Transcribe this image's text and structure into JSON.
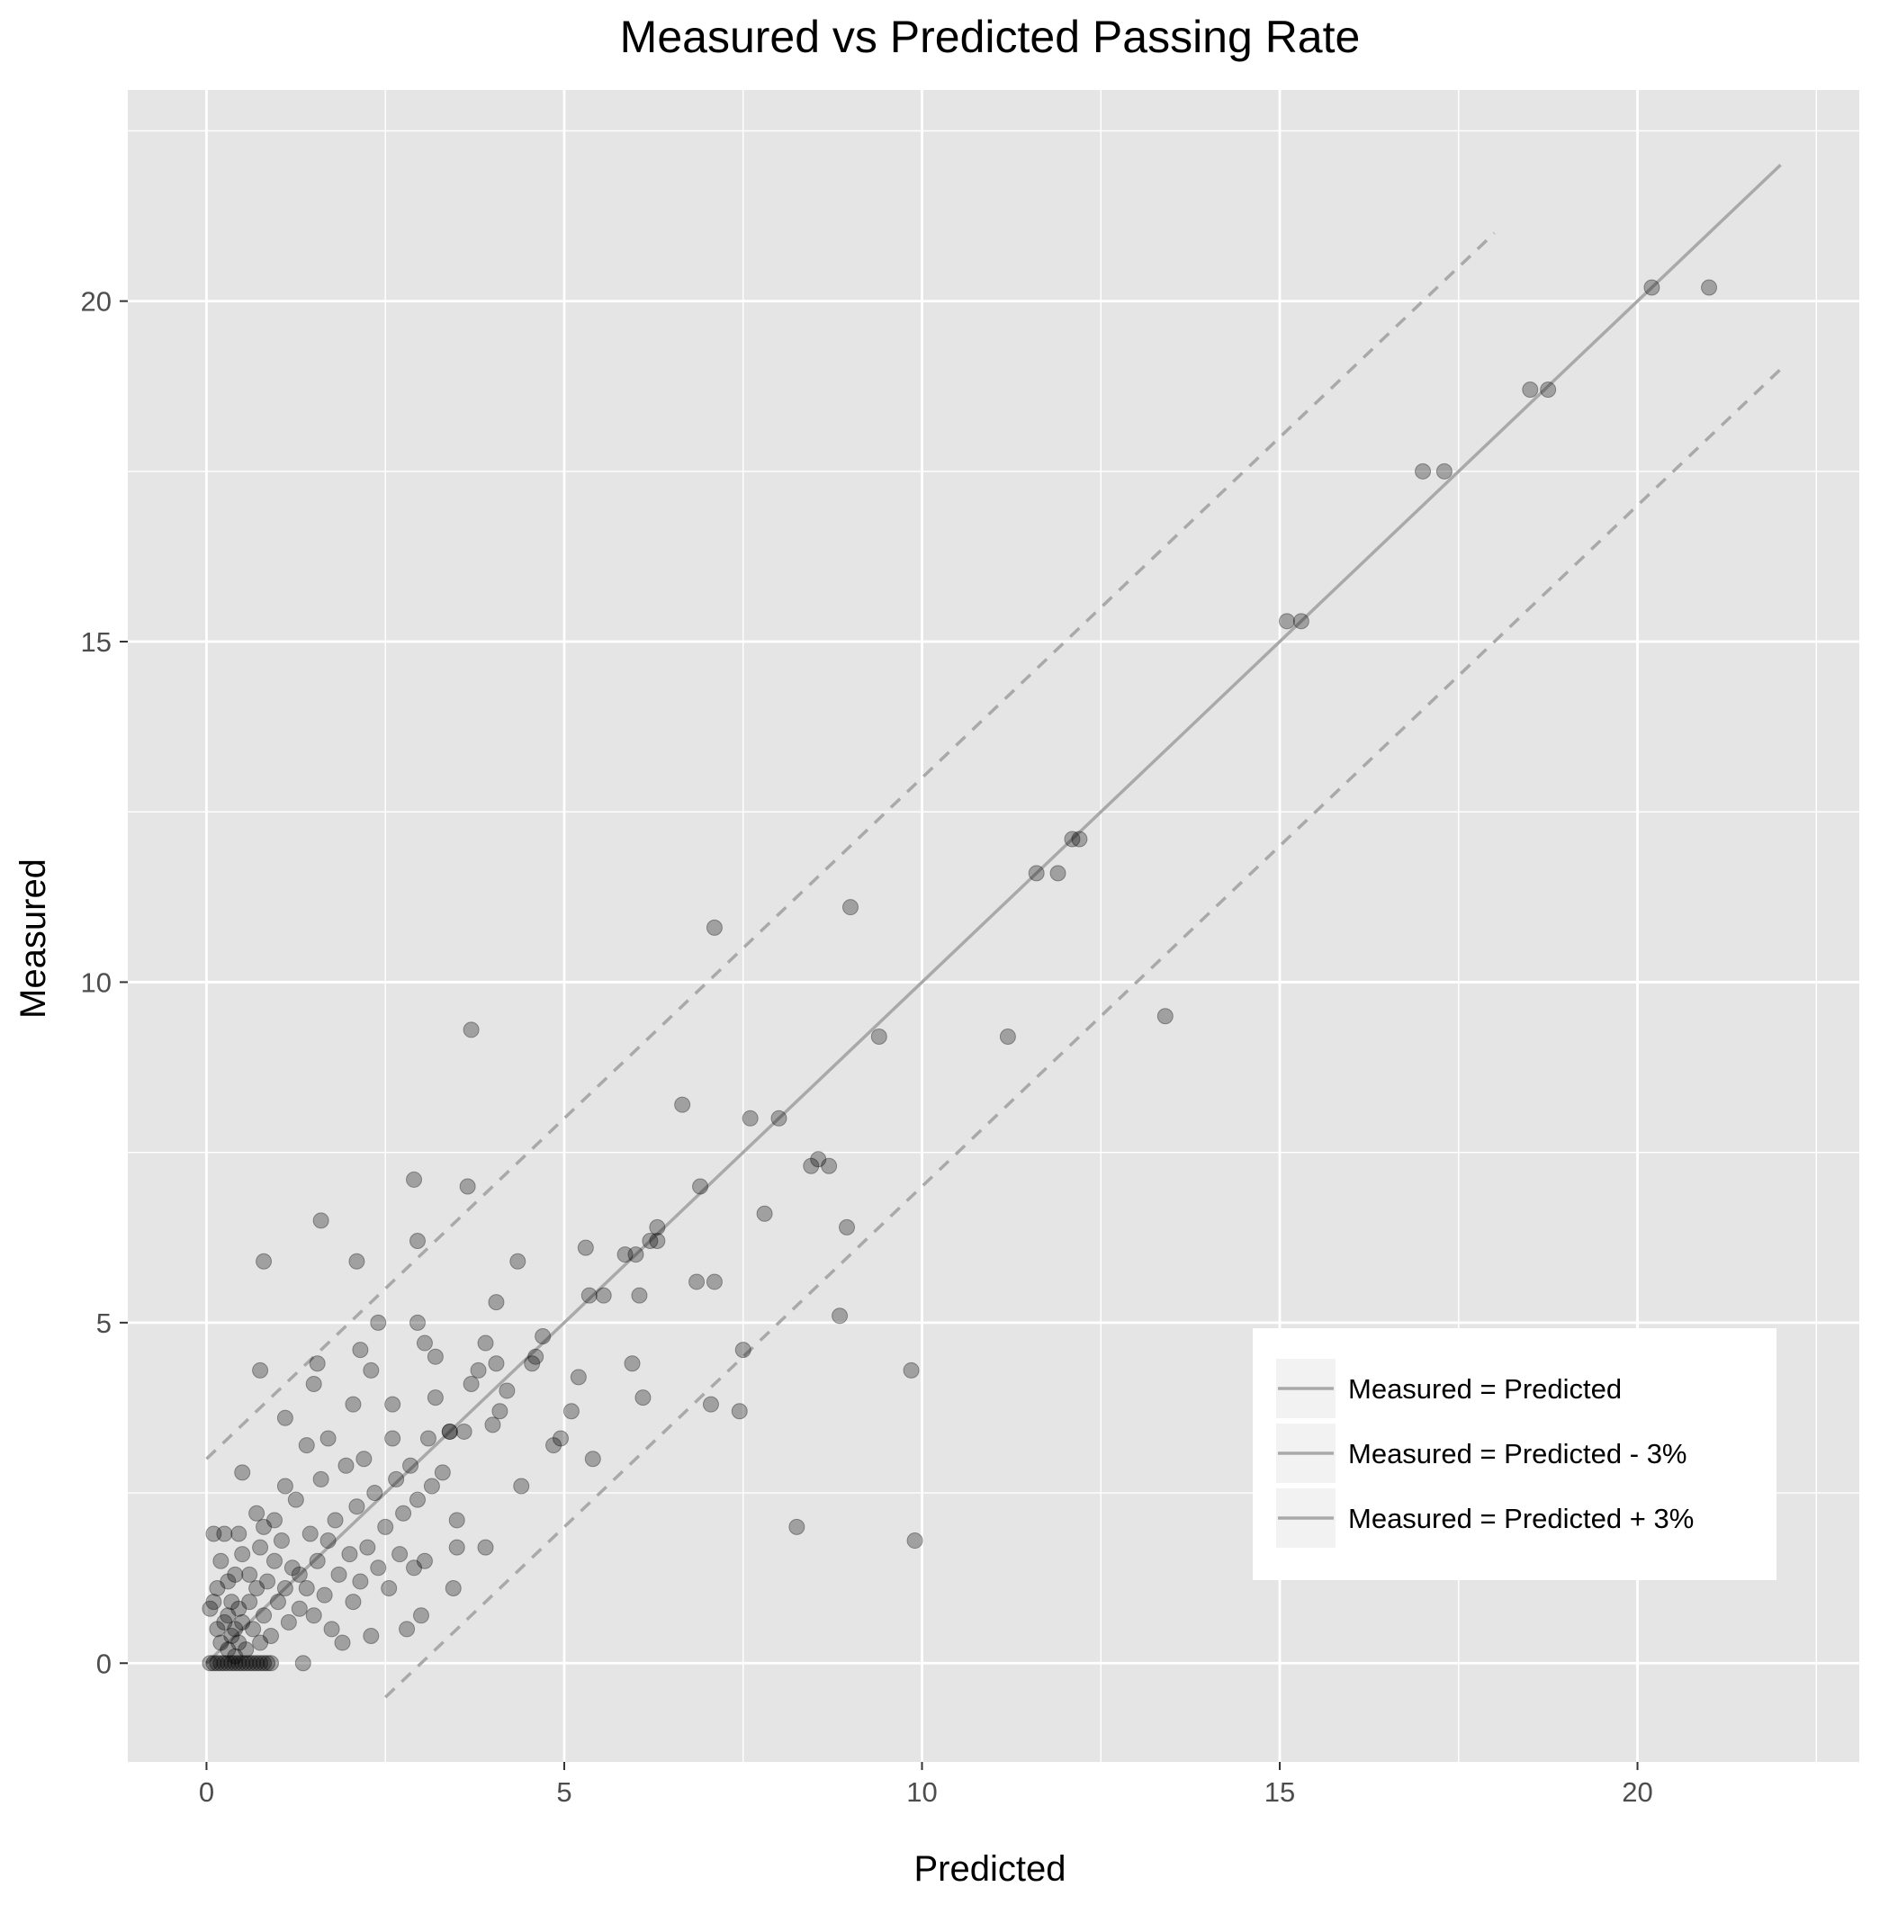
{
  "chart_data": {
    "type": "scatter",
    "title": "Measured vs Predicted Passing Rate",
    "xlabel": "Predicted",
    "ylabel": "Measured",
    "xlim": [
      -1.1,
      23.1
    ],
    "ylim": [
      -1.45,
      23.1
    ],
    "x_ticks": [
      0,
      5,
      10,
      15,
      20
    ],
    "y_ticks": [
      0,
      5,
      10,
      15,
      20
    ],
    "x_tick_labels": [
      "0",
      "5",
      "10",
      "15",
      "20"
    ],
    "y_tick_labels": [
      "0",
      "5",
      "10",
      "15",
      "20"
    ],
    "grid": true,
    "legend_position": "bottom-right",
    "colors": {
      "panel": "#e5e5e5",
      "grid": "#ffffff",
      "points": "#000000",
      "reference_lines": "#a9a9a9"
    },
    "lines": [
      {
        "name": "Measured = Predicted",
        "style": "solid",
        "x": [
          0,
          22
        ],
        "y": [
          0,
          22
        ]
      },
      {
        "name": "Measured = Predicted - 3%",
        "style": "dashed",
        "x": [
          2.5,
          22
        ],
        "y": [
          -0.5,
          19
        ]
      },
      {
        "name": "Measured = Predicted + 3%",
        "style": "dashed",
        "x": [
          0,
          18
        ],
        "y": [
          3,
          21
        ]
      }
    ],
    "legend": [
      "Measured = Predicted",
      "Measured = Predicted - 3%",
      "Measured = Predicted + 3%"
    ],
    "series": [
      {
        "points": [
          [
            0.05,
            0
          ],
          [
            0.1,
            0
          ],
          [
            0.15,
            0
          ],
          [
            0.2,
            0
          ],
          [
            0.25,
            0
          ],
          [
            0.3,
            0
          ],
          [
            0.35,
            0
          ],
          [
            0.4,
            0
          ],
          [
            0.45,
            0
          ],
          [
            0.5,
            0
          ],
          [
            0.55,
            0
          ],
          [
            0.6,
            0
          ],
          [
            0.65,
            0
          ],
          [
            0.7,
            0
          ],
          [
            0.75,
            0
          ],
          [
            0.8,
            0
          ],
          [
            0.85,
            0
          ],
          [
            0.9,
            0
          ],
          [
            1.35,
            0
          ],
          [
            0.05,
            0.8
          ],
          [
            0.1,
            0.9
          ],
          [
            0.15,
            1.1
          ],
          [
            0.1,
            1.9
          ],
          [
            0.15,
            0.5
          ],
          [
            0.2,
            0.3
          ],
          [
            0.2,
            1.5
          ],
          [
            0.25,
            0.6
          ],
          [
            0.25,
            1.9
          ],
          [
            0.3,
            0.2
          ],
          [
            0.3,
            0.7
          ],
          [
            0.3,
            1.2
          ],
          [
            0.35,
            0.4
          ],
          [
            0.35,
            0.9
          ],
          [
            0.4,
            0.1
          ],
          [
            0.4,
            0.5
          ],
          [
            0.4,
            1.3
          ],
          [
            0.45,
            0.3
          ],
          [
            0.45,
            0.8
          ],
          [
            0.45,
            1.9
          ],
          [
            0.5,
            0.6
          ],
          [
            0.5,
            1.6
          ],
          [
            0.5,
            2.8
          ],
          [
            0.55,
            0.2
          ],
          [
            0.6,
            0.9
          ],
          [
            0.6,
            1.3
          ],
          [
            0.65,
            0.5
          ],
          [
            0.7,
            1.1
          ],
          [
            0.7,
            2.2
          ],
          [
            0.75,
            0.3
          ],
          [
            0.75,
            1.7
          ],
          [
            0.8,
            0.7
          ],
          [
            0.8,
            2.0
          ],
          [
            0.85,
            1.2
          ],
          [
            0.9,
            0.4
          ],
          [
            0.95,
            1.5
          ],
          [
            0.95,
            2.1
          ],
          [
            1.0,
            0.9
          ],
          [
            1.05,
            1.8
          ],
          [
            1.1,
            1.1
          ],
          [
            1.1,
            2.6
          ],
          [
            1.15,
            0.6
          ],
          [
            1.2,
            1.4
          ],
          [
            1.25,
            2.4
          ],
          [
            1.3,
            0.8
          ],
          [
            1.3,
            1.3
          ],
          [
            1.4,
            1.1
          ],
          [
            1.45,
            1.9
          ],
          [
            1.5,
            0.7
          ],
          [
            1.55,
            1.5
          ],
          [
            1.6,
            2.7
          ],
          [
            1.65,
            1.0
          ],
          [
            1.7,
            1.8
          ],
          [
            1.75,
            0.5
          ],
          [
            1.8,
            2.1
          ],
          [
            1.85,
            1.3
          ],
          [
            1.9,
            0.3
          ],
          [
            1.95,
            2.9
          ],
          [
            2.0,
            1.6
          ],
          [
            2.05,
            0.9
          ],
          [
            2.1,
            2.3
          ],
          [
            2.15,
            1.2
          ],
          [
            2.2,
            3.0
          ],
          [
            2.25,
            1.7
          ],
          [
            2.3,
            0.4
          ],
          [
            2.35,
            2.5
          ],
          [
            2.4,
            1.4
          ],
          [
            2.5,
            2.0
          ],
          [
            2.55,
            1.1
          ],
          [
            2.6,
            3.3
          ],
          [
            2.65,
            2.7
          ],
          [
            2.7,
            1.6
          ],
          [
            2.75,
            2.2
          ],
          [
            2.8,
            0.5
          ],
          [
            2.85,
            2.9
          ],
          [
            2.9,
            1.4
          ],
          [
            2.95,
            2.4
          ],
          [
            3.0,
            0.7
          ],
          [
            3.05,
            1.5
          ],
          [
            3.1,
            3.3
          ],
          [
            3.15,
            2.6
          ],
          [
            3.2,
            3.9
          ],
          [
            3.3,
            2.8
          ],
          [
            3.4,
            3.4
          ],
          [
            3.45,
            1.1
          ],
          [
            3.5,
            1.7
          ],
          [
            3.5,
            2.1
          ],
          [
            3.6,
            3.4
          ],
          [
            3.9,
            1.7
          ],
          [
            0.75,
            4.3
          ],
          [
            0.8,
            5.9
          ],
          [
            1.1,
            3.6
          ],
          [
            1.5,
            4.1
          ],
          [
            1.55,
            4.4
          ],
          [
            1.6,
            6.5
          ],
          [
            1.4,
            3.2
          ],
          [
            1.7,
            3.3
          ],
          [
            2.05,
            3.8
          ],
          [
            2.1,
            5.9
          ],
          [
            2.15,
            4.6
          ],
          [
            2.3,
            4.3
          ],
          [
            2.4,
            5.0
          ],
          [
            2.6,
            3.8
          ],
          [
            2.9,
            7.1
          ],
          [
            2.95,
            6.2
          ],
          [
            2.95,
            5.0
          ],
          [
            3.05,
            4.7
          ],
          [
            3.2,
            4.5
          ],
          [
            3.4,
            3.4
          ],
          [
            3.65,
            7.0
          ],
          [
            3.7,
            4.1
          ],
          [
            3.7,
            9.3
          ],
          [
            3.8,
            4.3
          ],
          [
            3.9,
            4.7
          ],
          [
            4.0,
            3.5
          ],
          [
            4.05,
            5.3
          ],
          [
            4.05,
            4.4
          ],
          [
            4.1,
            3.7
          ],
          [
            4.2,
            4.0
          ],
          [
            4.35,
            5.9
          ],
          [
            4.4,
            2.6
          ],
          [
            4.55,
            4.4
          ],
          [
            4.6,
            4.5
          ],
          [
            4.7,
            4.8
          ],
          [
            4.85,
            3.2
          ],
          [
            4.95,
            3.3
          ],
          [
            5.1,
            3.7
          ],
          [
            5.2,
            4.2
          ],
          [
            5.3,
            6.1
          ],
          [
            5.35,
            5.4
          ],
          [
            5.4,
            3.0
          ],
          [
            5.55,
            5.4
          ],
          [
            5.85,
            6.0
          ],
          [
            5.95,
            4.4
          ],
          [
            6.0,
            6.0
          ],
          [
            6.05,
            5.4
          ],
          [
            6.1,
            3.9
          ],
          [
            6.2,
            6.2
          ],
          [
            6.3,
            6.2
          ],
          [
            6.3,
            6.4
          ],
          [
            6.65,
            8.2
          ],
          [
            6.85,
            5.6
          ],
          [
            6.9,
            7.0
          ],
          [
            7.05,
            3.8
          ],
          [
            7.1,
            10.8
          ],
          [
            7.1,
            5.6
          ],
          [
            7.45,
            3.7
          ],
          [
            7.5,
            4.6
          ],
          [
            7.6,
            8.0
          ],
          [
            7.8,
            6.6
          ],
          [
            8.0,
            8.0
          ],
          [
            8.25,
            2.0
          ],
          [
            8.45,
            7.3
          ],
          [
            8.55,
            7.4
          ],
          [
            8.7,
            7.3
          ],
          [
            8.85,
            5.1
          ],
          [
            8.95,
            6.4
          ],
          [
            9.0,
            11.1
          ],
          [
            9.4,
            9.2
          ],
          [
            9.85,
            4.3
          ],
          [
            9.9,
            1.8
          ],
          [
            11.2,
            9.2
          ],
          [
            11.6,
            11.6
          ],
          [
            11.9,
            11.6
          ],
          [
            12.1,
            12.1
          ],
          [
            12.2,
            12.1
          ],
          [
            13.4,
            9.5
          ],
          [
            15.1,
            15.3
          ],
          [
            15.3,
            15.3
          ],
          [
            17.0,
            17.5
          ],
          [
            17.3,
            17.5
          ],
          [
            18.5,
            18.7
          ],
          [
            18.75,
            18.7
          ],
          [
            20.2,
            20.2
          ],
          [
            21.0,
            20.2
          ]
        ]
      }
    ]
  }
}
